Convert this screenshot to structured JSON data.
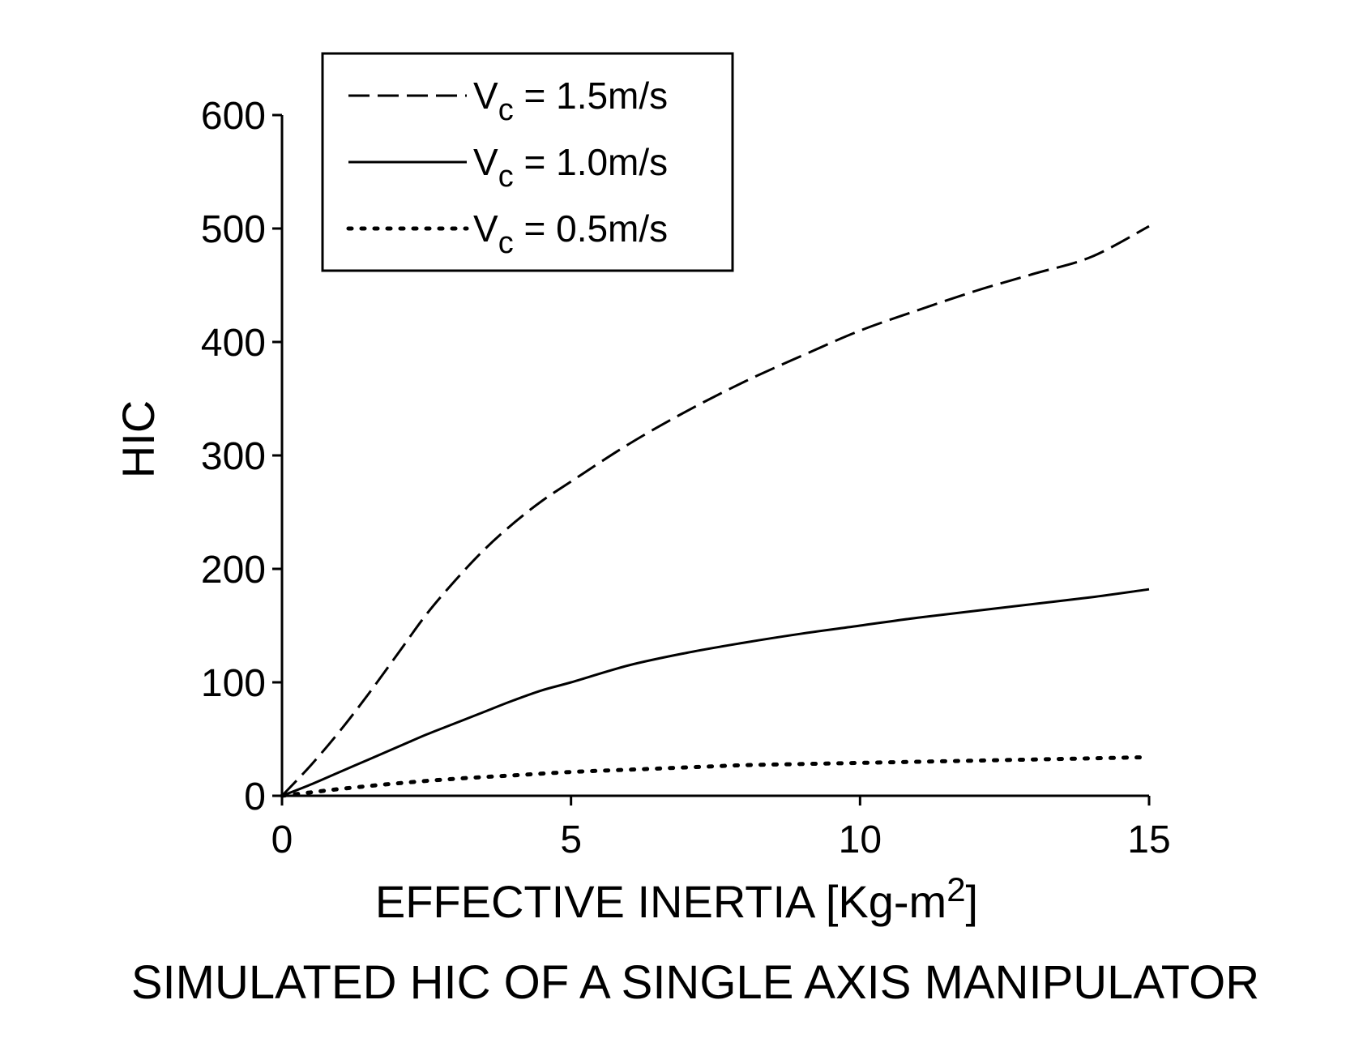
{
  "chart_data": {
    "type": "line",
    "title": "SIMULATED HIC OF A SINGLE AXIS MANIPULATOR",
    "xlabel": {
      "main": "EFFECTIVE INERTIA [Kg-m",
      "sup": "2",
      "end": "]"
    },
    "ylabel": "HIC",
    "xlim": [
      0,
      15
    ],
    "ylim": [
      0,
      600
    ],
    "xticks": [
      "0",
      "5",
      "10",
      "15"
    ],
    "yticks": [
      "0",
      "100",
      "200",
      "300",
      "400",
      "500",
      "600"
    ],
    "grid": false,
    "legend_position": "top-left",
    "series": [
      {
        "name": {
          "v": "V",
          "sub": "c",
          "rest": " = 1.5m/s"
        },
        "style": "dashed",
        "x": [
          0,
          0.5,
          1,
          1.5,
          2,
          2.5,
          3,
          3.5,
          4,
          4.5,
          5,
          6,
          7,
          8,
          9,
          10,
          11,
          12,
          13,
          14,
          15
        ],
        "y": [
          0,
          27,
          57,
          90,
          125,
          160,
          190,
          217,
          240,
          260,
          277,
          310,
          339,
          365,
          388,
          410,
          428,
          445,
          460,
          475,
          502
        ]
      },
      {
        "name": {
          "v": "V",
          "sub": "c",
          "rest": " = 1.0m/s"
        },
        "style": "solid",
        "x": [
          0,
          0.5,
          1,
          1.5,
          2,
          2.5,
          3,
          3.5,
          4,
          4.5,
          5,
          6,
          7,
          8,
          9,
          10,
          11,
          12,
          13,
          14,
          15
        ],
        "y": [
          0,
          10,
          21,
          32,
          43,
          54,
          64,
          74,
          84,
          93,
          100,
          115,
          126,
          135,
          143,
          150,
          157,
          163,
          169,
          175,
          182
        ]
      },
      {
        "name": {
          "v": "V",
          "sub": "c",
          "rest": " = 0.5m/s"
        },
        "style": "dotted",
        "x": [
          0,
          0.5,
          1,
          2,
          3,
          4,
          5,
          6,
          7,
          8,
          9,
          10,
          11,
          12,
          13,
          14,
          15
        ],
        "y": [
          0,
          3,
          6,
          11,
          15,
          18,
          21,
          23,
          25,
          27,
          28,
          29,
          30,
          31,
          32,
          33,
          34
        ]
      }
    ]
  }
}
